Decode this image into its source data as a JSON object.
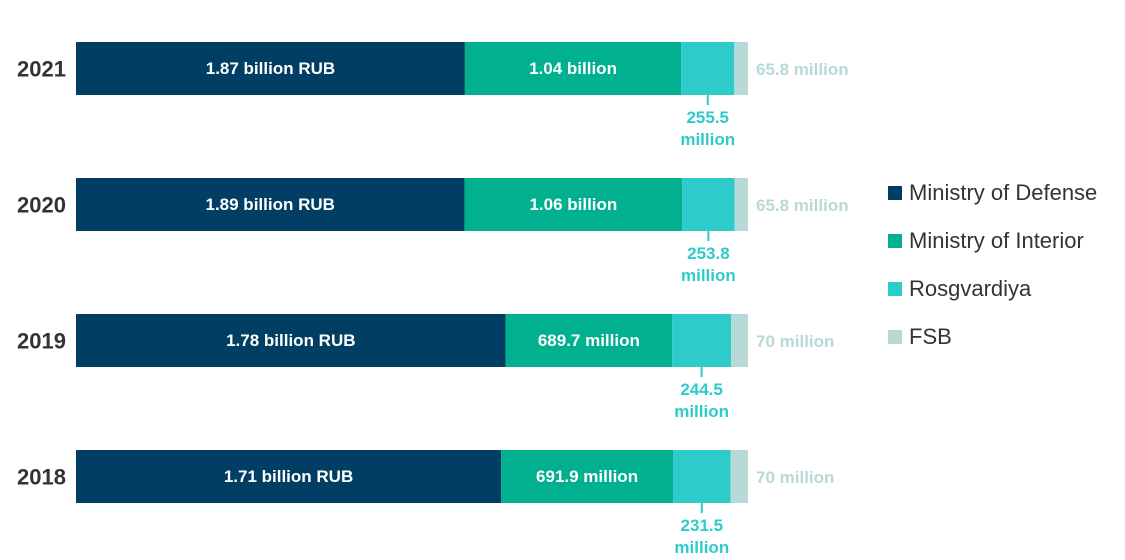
{
  "chart_data": {
    "type": "bar",
    "orientation": "horizontal",
    "stacked": "percent",
    "categories": [
      "2021",
      "2020",
      "2019",
      "2018"
    ],
    "series": [
      {
        "name": "Ministry of Defense",
        "color": "#003f63",
        "values": [
          1870,
          1890,
          1780,
          1710
        ],
        "value_labels": [
          "1.87 billion RUB",
          "1.89 billion RUB",
          "1.78 billion RUB",
          "1.71 billion RUB"
        ]
      },
      {
        "name": "Ministry of Interior",
        "color": "#00b08e",
        "values": [
          1040,
          1060,
          689.7,
          691.9
        ],
        "value_labels": [
          "1.04 billion",
          "1.06 billion",
          "689.7 million",
          "691.9 million"
        ]
      },
      {
        "name": "Rosgvardiya",
        "color": "#2ecbcb",
        "values": [
          255.5,
          253.8,
          244.5,
          231.5
        ],
        "value_labels": [
          "255.5 million",
          "253.8 million",
          "244.5 million",
          "231.5 million"
        ]
      },
      {
        "name": "FSB",
        "color": "#b9d9d9",
        "values": [
          65.8,
          65.8,
          70,
          70
        ],
        "value_labels": [
          "65.8 million",
          "65.8 million",
          "70 million",
          "70 million"
        ]
      }
    ],
    "legend": "right"
  }
}
